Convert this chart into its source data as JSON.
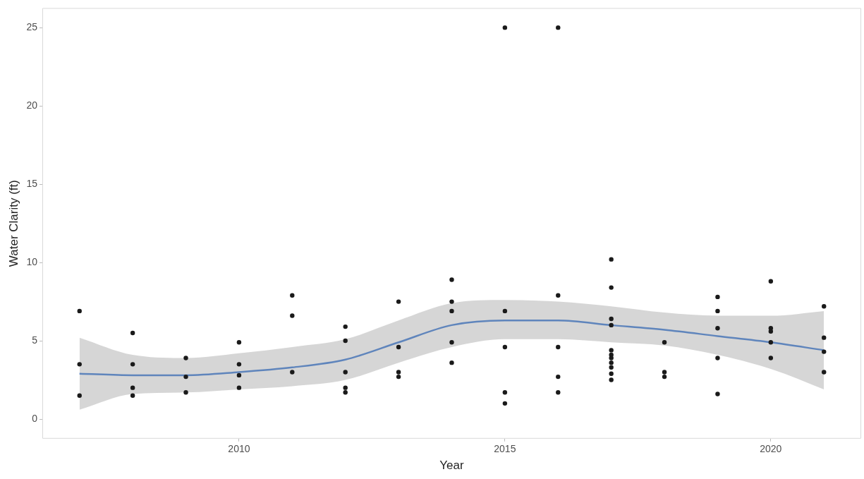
{
  "chart_data": {
    "type": "scatter",
    "xlabel": "Year",
    "ylabel": "Water Clarity (ft)",
    "xlim": [
      2006.3,
      2021.7
    ],
    "ylim": [
      -1.25,
      26.25
    ],
    "xticks": [
      2010,
      2015,
      2020
    ],
    "yticks": [
      0,
      5,
      10,
      15,
      20,
      25
    ],
    "grid": false,
    "legend": false,
    "marker": "circle",
    "series": [
      {
        "color": "#1a1a1a",
        "x": [
          2007,
          2007,
          2007,
          2008,
          2008,
          2008,
          2008,
          2009,
          2009,
          2009,
          2010,
          2010,
          2010,
          2010,
          2011,
          2011,
          2011,
          2012,
          2012,
          2012,
          2012,
          2012,
          2013,
          2013,
          2013,
          2013,
          2014,
          2014,
          2014,
          2014,
          2014,
          2015,
          2015,
          2015,
          2015,
          2015,
          2016,
          2016,
          2016,
          2016,
          2016,
          2017,
          2017,
          2017,
          2017,
          2017,
          2017,
          2017,
          2017,
          2017,
          2017,
          2017,
          2018,
          2018,
          2018,
          2019,
          2019,
          2019,
          2019,
          2019,
          2020,
          2020,
          2020,
          2020,
          2020,
          2021,
          2021,
          2021,
          2021
        ],
        "values": [
          6.9,
          3.5,
          1.5,
          5.5,
          3.5,
          2.0,
          1.5,
          3.9,
          2.7,
          1.7,
          4.9,
          3.5,
          2.8,
          2.0,
          7.9,
          6.6,
          3.0,
          5.9,
          5.0,
          3.0,
          2.0,
          1.7,
          7.5,
          4.6,
          3.0,
          2.7,
          8.9,
          7.5,
          6.9,
          4.9,
          3.6,
          25,
          6.9,
          4.6,
          1.7,
          1.0,
          25,
          7.9,
          4.6,
          2.7,
          1.7,
          10.2,
          8.4,
          6.4,
          6.0,
          4.4,
          4.1,
          3.9,
          3.6,
          3.3,
          2.9,
          2.5,
          4.9,
          3.0,
          2.7,
          7.8,
          6.9,
          5.8,
          3.9,
          1.6,
          8.8,
          5.8,
          5.6,
          4.9,
          3.9,
          7.2,
          5.2,
          4.3,
          3.0
        ]
      },
      {
        "type": "line",
        "color": "#3a78d4",
        "marker": "none",
        "x": [
          2007,
          2008,
          2009,
          2010,
          2011,
          2012,
          2013,
          2014,
          2015,
          2016,
          2017,
          2018,
          2019,
          2020,
          2021
        ],
        "values": [
          2.9,
          2.8,
          2.8,
          3.0,
          3.3,
          3.8,
          4.9,
          6.0,
          6.3,
          6.3,
          6.0,
          5.7,
          5.3,
          4.9,
          4.4
        ],
        "lower": [
          0.6,
          1.6,
          1.7,
          1.9,
          2.1,
          2.5,
          3.6,
          4.6,
          5.1,
          5.1,
          4.9,
          4.7,
          4.1,
          3.2,
          1.9
        ],
        "upper": [
          5.2,
          4.1,
          3.9,
          4.2,
          4.6,
          5.1,
          6.3,
          7.4,
          7.6,
          7.5,
          7.2,
          6.8,
          6.6,
          6.6,
          6.9
        ]
      }
    ]
  }
}
